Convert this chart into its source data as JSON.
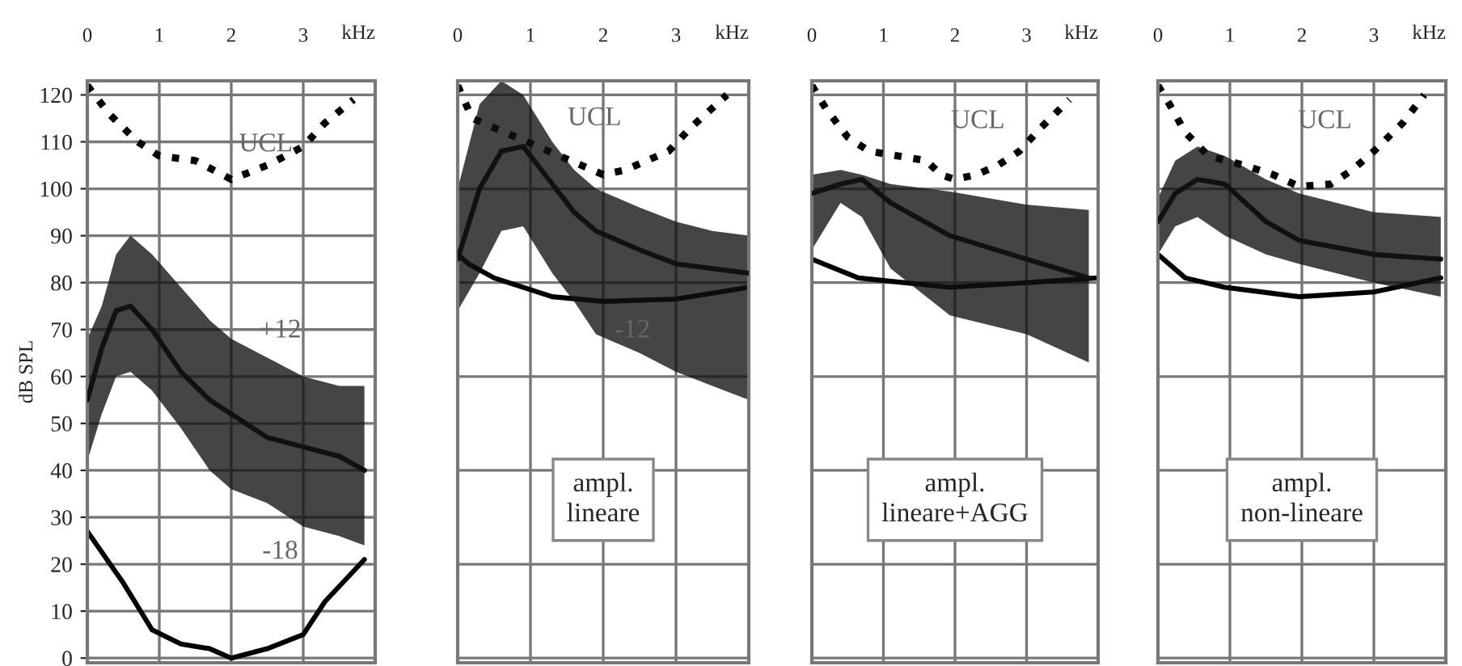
{
  "chart_data": [
    {
      "type": "line",
      "xlabel": "kHz",
      "ylabel": "dB SPL",
      "xlim": [
        0,
        4
      ],
      "xticks": [
        0,
        1,
        2,
        3
      ],
      "ylim": [
        -1,
        123
      ],
      "yticks": [
        0,
        10,
        20,
        30,
        40,
        50,
        60,
        70,
        80,
        90,
        100,
        110,
        120
      ],
      "grid": true,
      "legend": false,
      "series": [
        {
          "color": "#111111",
          "x": [
            0,
            0.2,
            0.4,
            0.6,
            0.9,
            1.3,
            1.7,
            2,
            2.5,
            3,
            3.5,
            3.85
          ],
          "values": [
            55,
            66,
            74,
            75,
            70,
            61,
            55,
            52,
            47,
            45,
            43,
            40
          ],
          "lower": [
            42,
            52,
            60,
            61,
            57,
            49,
            40,
            36,
            33,
            28,
            26,
            24
          ],
          "upper": [
            68,
            75,
            86,
            90,
            86,
            79,
            72,
            68,
            64,
            60,
            58,
            58
          ]
        },
        {
          "color": "#000000",
          "x": [
            0,
            0.5,
            0.9,
            1.3,
            1.7,
            2,
            2.5,
            3,
            3.3,
            3.85
          ],
          "values": [
            27,
            16,
            6,
            3,
            2,
            0,
            2,
            5,
            12,
            21
          ]
        },
        {
          "color": "#000000",
          "line_style": "dotted",
          "x": [
            0,
            0.3,
            0.7,
            1,
            1.5,
            2,
            2.5,
            3,
            3.3,
            3.7
          ],
          "values": [
            122,
            116,
            110,
            107,
            106,
            102,
            105,
            109,
            114,
            119
          ]
        }
      ],
      "annotations": [
        "UCL",
        "+12",
        "-18"
      ]
    },
    {
      "type": "line",
      "xlabel": "kHz",
      "xlim": [
        0,
        4
      ],
      "xticks": [
        0,
        1,
        2,
        3
      ],
      "ylim": [
        -1,
        123
      ],
      "yticks": [
        0,
        20,
        40,
        60,
        80,
        100,
        120
      ],
      "tick_labels": "x",
      "grid": true,
      "legend": false,
      "series": [
        {
          "color": "#000000",
          "line_style": "dotted",
          "x": [
            0,
            0.2,
            1.7,
            2,
            2.3,
            2.6,
            2.9,
            3.2,
            3.7
          ],
          "values": [
            122,
            115,
            105,
            103,
            104,
            106,
            108,
            113,
            120
          ]
        },
        {
          "color": "#111111",
          "x": [
            0,
            0.3,
            0.6,
            0.9,
            1.3,
            1.6,
            1.9,
            2.5,
            3,
            3.5,
            4
          ],
          "values": [
            85,
            100,
            108,
            109,
            101,
            95,
            91,
            87,
            84,
            83,
            82
          ],
          "lower": [
            74,
            82,
            91,
            92,
            82,
            76,
            69,
            65,
            61,
            58,
            55
          ],
          "upper": [
            100,
            118,
            123,
            120,
            110,
            104,
            100,
            96,
            93,
            91,
            90
          ]
        },
        {
          "color": "#000000",
          "x": [
            0,
            0.15,
            0.5,
            1.3,
            2,
            3,
            4
          ],
          "values": [
            86,
            84,
            81,
            77,
            76,
            76.5,
            79
          ]
        }
      ],
      "annotations": [
        "UCL",
        "-12",
        "ampl.\nlineare"
      ]
    },
    {
      "type": "line",
      "xlabel": "kHz",
      "xlim": [
        0,
        4
      ],
      "xticks": [
        0,
        1,
        2,
        3
      ],
      "ylim": [
        -1,
        123
      ],
      "yticks": [
        0,
        20,
        40,
        60,
        80,
        100,
        120
      ],
      "tick_labels": "x",
      "grid": true,
      "legend": false,
      "series": [
        {
          "color": "#000000",
          "line_style": "dotted",
          "x": [
            0,
            0.2,
            0.5,
            0.8,
            1.2,
            1.6,
            1.8,
            2,
            2.3,
            2.6,
            2.9,
            3.2,
            3.6
          ],
          "values": [
            122,
            117,
            111,
            108,
            107,
            106,
            103,
            102,
            103,
            105,
            108,
            113,
            119
          ]
        },
        {
          "color": "#111111",
          "x": [
            0,
            0.4,
            0.7,
            1.1,
            1.93,
            3,
            3.87
          ],
          "values": [
            99,
            101,
            102,
            97,
            90,
            85,
            81
          ],
          "lower": [
            87,
            97,
            94,
            83,
            73,
            69,
            63
          ],
          "upper": [
            103,
            104,
            103,
            101,
            99.4,
            96.6,
            95.5
          ]
        },
        {
          "color": "#000000",
          "x": [
            0,
            0.65,
            1.93,
            3,
            4
          ],
          "values": [
            85,
            81,
            79,
            80,
            81
          ]
        }
      ],
      "annotations": [
        "UCL",
        "ampl.\nlineare+AGG"
      ]
    },
    {
      "type": "line",
      "xlabel": "kHz",
      "xlim": [
        0,
        4
      ],
      "xticks": [
        0,
        1,
        2,
        3
      ],
      "ylim": [
        -1,
        123
      ],
      "yticks": [
        0,
        20,
        40,
        60,
        80,
        100,
        120
      ],
      "tick_labels": "x",
      "grid": true,
      "legend": false,
      "series": [
        {
          "color": "#000000",
          "line_style": "dotted",
          "x": [
            0,
            0.16,
            0.38,
            0.7,
            1.2,
            1.6,
            1.96,
            2.4,
            2.7,
            3,
            3.4,
            3.7
          ],
          "values": [
            122,
            118,
            112,
            107,
            105,
            103,
            100.5,
            101,
            104,
            108,
            114,
            120
          ]
        },
        {
          "color": "#111111",
          "x": [
            0,
            0.24,
            0.55,
            0.93,
            1.5,
            1.96,
            3,
            3.93
          ],
          "values": [
            93,
            99,
            102,
            101,
            93,
            89,
            86,
            85
          ],
          "lower": [
            86,
            92,
            94,
            90,
            86,
            84,
            80,
            77
          ],
          "upper": [
            98,
            106,
            109,
            107,
            102,
            99,
            95,
            94
          ]
        },
        {
          "color": "#000000",
          "x": [
            0,
            0.38,
            0.93,
            1.96,
            3,
            3.93
          ],
          "values": [
            86,
            81,
            79,
            77,
            78,
            81
          ]
        }
      ],
      "annotations": [
        "UCL",
        "ampl.\nnon-lineare"
      ]
    }
  ]
}
